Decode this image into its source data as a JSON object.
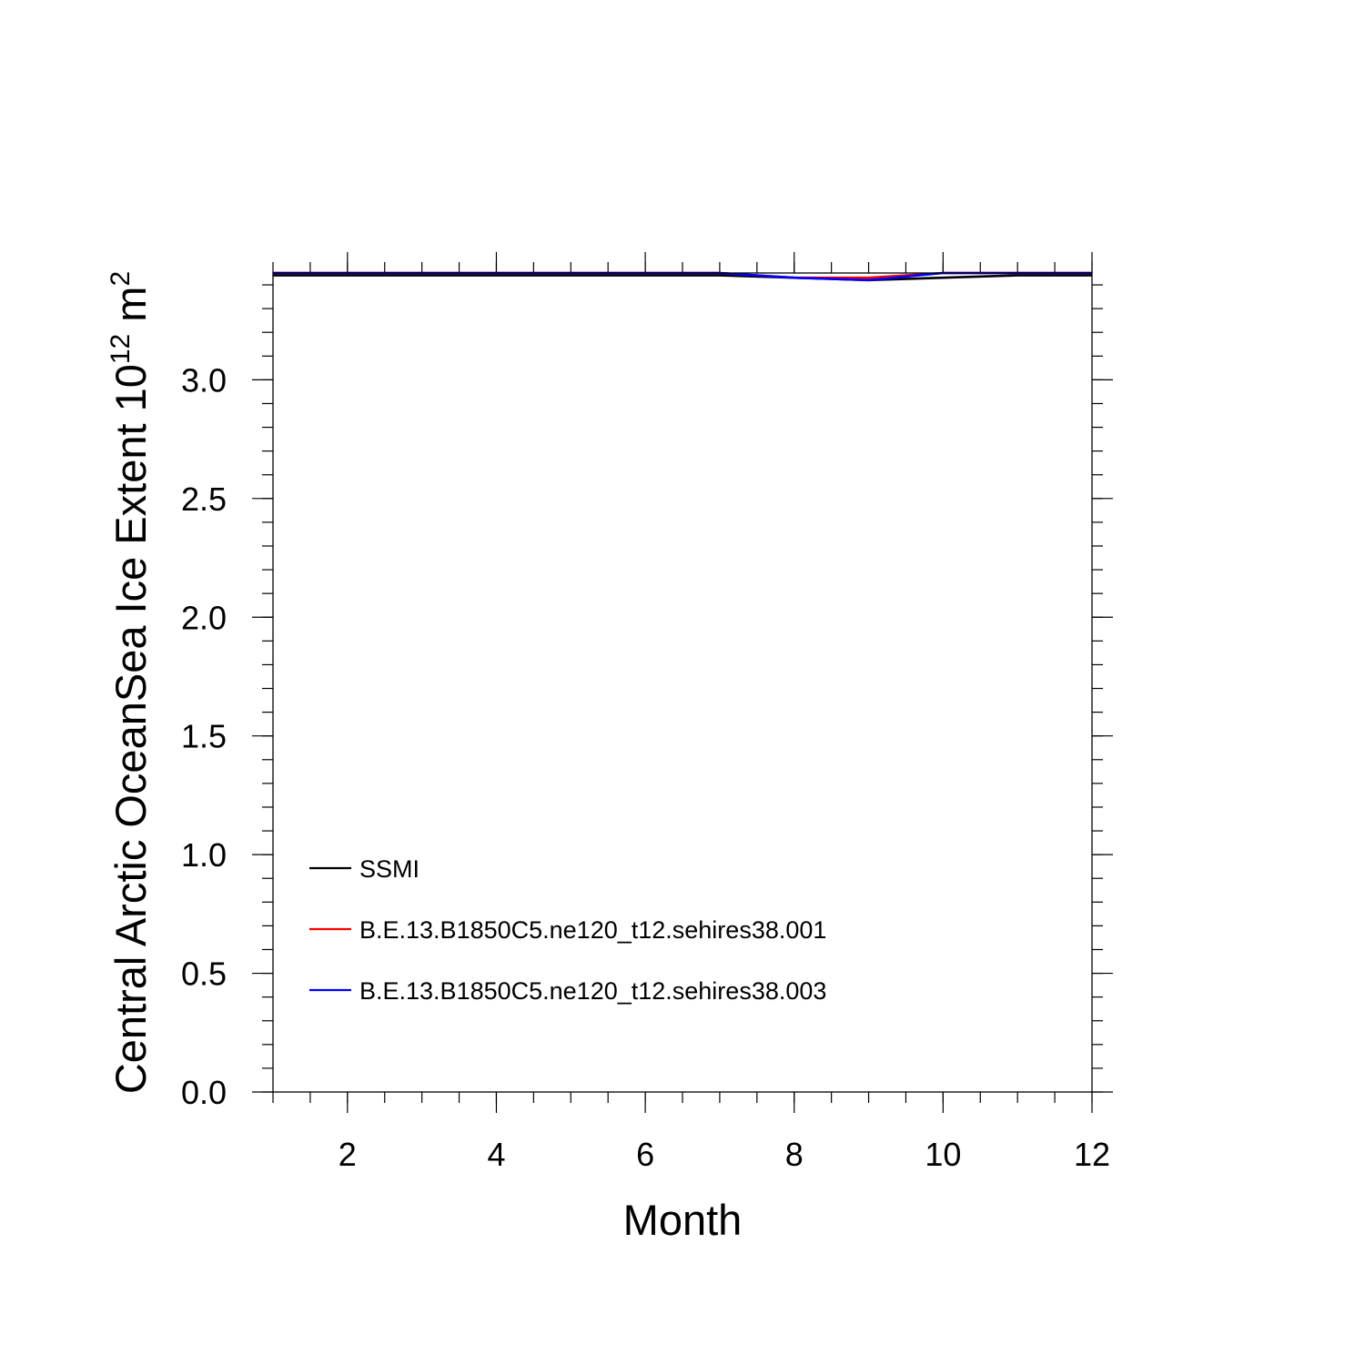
{
  "chart_data": {
    "type": "line",
    "title": "",
    "xlabel": "Month",
    "ylabel": {
      "prefix": "Central Arctic OceanSea Ice Extent 10",
      "exponent": "12",
      "unit": " m",
      "unit_exponent": "2"
    },
    "xlim": [
      1,
      12
    ],
    "ylim": [
      0.0,
      3.45
    ],
    "xticks": [
      2,
      4,
      6,
      8,
      10,
      12
    ],
    "xtick_labels": [
      "2",
      "4",
      "6",
      "8",
      "10",
      "12"
    ],
    "yticks": [
      0.0,
      0.5,
      1.0,
      1.5,
      2.0,
      2.5,
      3.0
    ],
    "ytick_labels": [
      "0.0",
      "0.5",
      "1.0",
      "1.5",
      "2.0",
      "2.5",
      "3.0"
    ],
    "grid": false,
    "legend_position": "lower-left",
    "x": [
      1,
      2,
      3,
      4,
      5,
      6,
      7,
      8,
      9,
      10,
      11,
      12
    ],
    "series": [
      {
        "name": "SSMI",
        "color": "#000000",
        "values": [
          3.44,
          3.44,
          3.44,
          3.44,
          3.44,
          3.44,
          3.44,
          3.43,
          3.42,
          3.43,
          3.44,
          3.44
        ]
      },
      {
        "name": "B.E.13.B1850C5.ne120_t12.sehires38.001",
        "color": "#ff0000",
        "values": [
          3.45,
          3.45,
          3.45,
          3.46,
          3.45,
          3.45,
          3.45,
          3.43,
          3.43,
          3.46,
          3.46,
          3.46
        ]
      },
      {
        "name": "B.E.13.B1850C5.ne120_t12.sehires38.003",
        "color": "#0000ff",
        "values": [
          3.46,
          3.46,
          3.46,
          3.46,
          3.46,
          3.46,
          3.45,
          3.43,
          3.42,
          3.45,
          3.46,
          3.46
        ]
      }
    ]
  }
}
